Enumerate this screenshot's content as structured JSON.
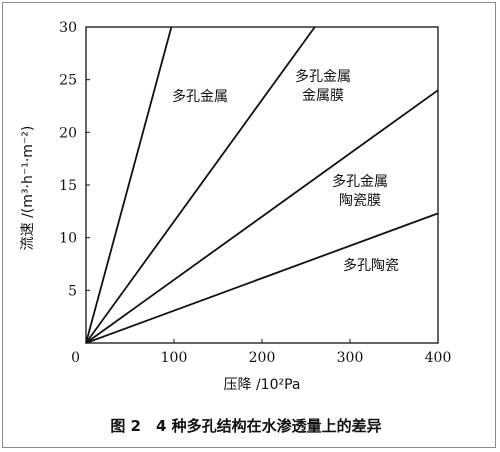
{
  "chart_data": {
    "type": "line",
    "xlabel": "压降 /10²Pa",
    "ylabel": "流速 /(m³·h⁻¹·m⁻²)",
    "xlim": [
      0,
      400
    ],
    "ylim": [
      0,
      30
    ],
    "xticks": [
      "0",
      "100",
      "200",
      "300",
      "400"
    ],
    "yticks": [
      "5",
      "10",
      "15",
      "20",
      "25",
      "30"
    ],
    "grid": false,
    "series": [
      {
        "label_lines": [
          "多孔金属"
        ],
        "x": [
          0,
          97
        ],
        "y": [
          0,
          30
        ]
      },
      {
        "label_lines": [
          "多孔金属",
          "金属膜"
        ],
        "x": [
          0,
          260
        ],
        "y": [
          0,
          30
        ]
      },
      {
        "label_lines": [
          "多孔金属",
          "陶瓷膜"
        ],
        "x": [
          0,
          400
        ],
        "y": [
          0,
          24
        ]
      },
      {
        "label_lines": [
          "多孔陶瓷"
        ],
        "x": [
          0,
          400
        ],
        "y": [
          0,
          12.3
        ]
      }
    ]
  },
  "caption": "图 2　4 种多孔结构在水渗透量上的差异"
}
